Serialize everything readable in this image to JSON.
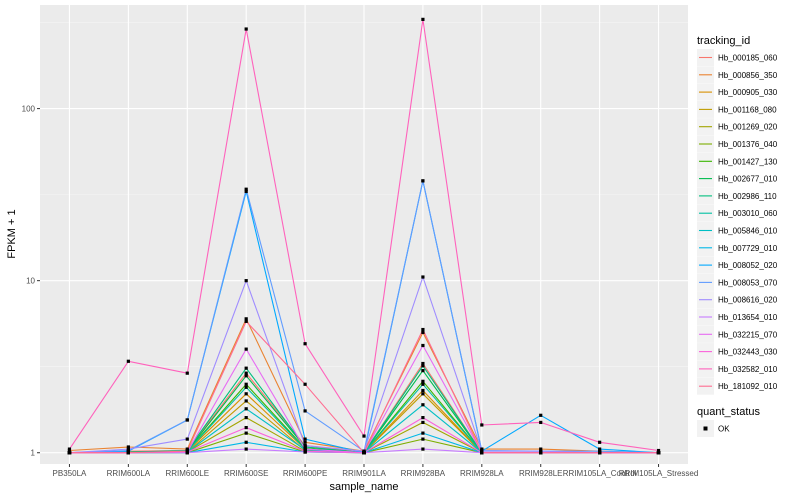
{
  "chart_data": {
    "type": "line",
    "xlabel": "sample_name",
    "ylabel": "FPKM + 1",
    "y_scale": "log10",
    "ylim": [
      0.86,
      400
    ],
    "y_ticks": [
      {
        "value": 1,
        "label": "1"
      },
      {
        "value": 10,
        "label": "10"
      },
      {
        "value": 100,
        "label": "100"
      }
    ],
    "grid": true,
    "legend_placement": "right",
    "categories": [
      "PB350LA",
      "RRIM600LA",
      "RRIM600LE",
      "RRIM600SE",
      "RRIM600PE",
      "RRIM901LA",
      "RRIM928BA",
      "RRIM928LA",
      "RRIM928LE",
      "RRIM105LA_Control",
      "RRIM105LA_Stressed"
    ],
    "series": [
      {
        "name": "Hb_000185_060",
        "color": "#F8766D",
        "values": [
          1.0,
          1.02,
          1.03,
          2.9,
          1.1,
          1.0,
          3.3,
          1.0,
          1.0,
          1.0,
          1.0
        ]
      },
      {
        "name": "Hb_000856_350",
        "color": "#EA8331",
        "values": [
          1.03,
          1.08,
          1.05,
          6.0,
          1.15,
          1.02,
          5.0,
          1.05,
          1.05,
          1.02,
          1.0
        ]
      },
      {
        "name": "Hb_000905_030",
        "color": "#D89000",
        "values": [
          1.0,
          1.01,
          1.02,
          2.2,
          1.05,
          1.0,
          2.3,
          1.0,
          1.0,
          1.0,
          1.0
        ]
      },
      {
        "name": "Hb_001168_080",
        "color": "#C09B00",
        "values": [
          1.0,
          1.0,
          1.01,
          2.0,
          1.03,
          1.0,
          2.2,
          1.0,
          1.0,
          1.0,
          1.0
        ]
      },
      {
        "name": "Hb_001269_020",
        "color": "#A3A500",
        "values": [
          1.0,
          1.0,
          1.01,
          1.6,
          1.02,
          1.0,
          1.5,
          1.0,
          1.0,
          1.0,
          1.0
        ]
      },
      {
        "name": "Hb_001376_040",
        "color": "#7CAE00",
        "values": [
          1.0,
          1.0,
          1.0,
          1.3,
          1.01,
          1.0,
          1.2,
          1.0,
          1.0,
          1.0,
          1.0
        ]
      },
      {
        "name": "Hb_001427_130",
        "color": "#39B600",
        "values": [
          1.0,
          1.0,
          1.02,
          2.5,
          1.06,
          1.0,
          2.6,
          1.0,
          1.0,
          1.0,
          1.0
        ]
      },
      {
        "name": "Hb_002677_010",
        "color": "#00BB4E",
        "values": [
          1.0,
          1.01,
          1.02,
          2.8,
          1.08,
          1.0,
          3.0,
          1.0,
          1.0,
          1.0,
          1.0
        ]
      },
      {
        "name": "Hb_002986_110",
        "color": "#00BF7D",
        "values": [
          1.0,
          1.01,
          1.03,
          3.1,
          1.08,
          1.0,
          3.2,
          1.0,
          1.0,
          1.0,
          1.0
        ]
      },
      {
        "name": "Hb_003010_060",
        "color": "#00C1A3",
        "values": [
          1.0,
          1.0,
          1.02,
          2.4,
          1.05,
          1.0,
          2.5,
          1.0,
          1.0,
          1.0,
          1.0
        ]
      },
      {
        "name": "Hb_005846_010",
        "color": "#00BFC4",
        "values": [
          1.0,
          1.0,
          1.01,
          1.8,
          1.04,
          1.0,
          1.9,
          1.0,
          1.0,
          1.0,
          1.0
        ]
      },
      {
        "name": "Hb_007729_010",
        "color": "#00B8E7",
        "values": [
          1.0,
          1.0,
          1.0,
          1.15,
          1.01,
          1.0,
          1.3,
          1.0,
          1.0,
          1.0,
          1.0
        ]
      },
      {
        "name": "Hb_008052_020",
        "color": "#00A9FF",
        "values": [
          1.0,
          1.02,
          1.55,
          33.0,
          1.2,
          1.0,
          38.0,
          1.02,
          1.65,
          1.05,
          1.0
        ]
      },
      {
        "name": "Hb_008053_070",
        "color": "#619CFF",
        "values": [
          1.0,
          1.03,
          1.55,
          34.0,
          1.75,
          1.02,
          38.0,
          1.03,
          1.02,
          1.02,
          1.0
        ]
      },
      {
        "name": "Hb_008616_020",
        "color": "#9F8CFF",
        "values": [
          1.0,
          1.05,
          1.2,
          10.0,
          1.1,
          1.02,
          10.5,
          1.02,
          1.02,
          1.0,
          1.0
        ]
      },
      {
        "name": "Hb_013654_010",
        "color": "#C77CFF",
        "values": [
          1.0,
          1.0,
          1.0,
          1.05,
          1.01,
          1.0,
          1.05,
          1.0,
          1.0,
          1.0,
          1.0
        ]
      },
      {
        "name": "Hb_032215_070",
        "color": "#E76BF3",
        "values": [
          1.0,
          1.0,
          1.01,
          4.0,
          1.05,
          1.0,
          4.2,
          1.0,
          1.0,
          1.0,
          1.0
        ]
      },
      {
        "name": "Hb_032443_030",
        "color": "#FA62DB",
        "values": [
          1.0,
          1.0,
          1.01,
          1.4,
          1.02,
          1.0,
          1.6,
          1.0,
          1.0,
          1.0,
          1.0
        ]
      },
      {
        "name": "Hb_032582_010",
        "color": "#FF62BC",
        "values": [
          1.05,
          3.4,
          2.9,
          290.0,
          4.3,
          1.25,
          330.0,
          1.45,
          1.5,
          1.15,
          1.03
        ]
      },
      {
        "name": "Hb_181092_010",
        "color": "#FF6C91",
        "values": [
          1.0,
          1.0,
          1.02,
          5.8,
          2.5,
          1.0,
          5.2,
          1.0,
          1.0,
          1.0,
          1.0
        ]
      }
    ],
    "legend_title": "tracking_id",
    "points_legend": {
      "title": "quant_status",
      "label": "OK"
    }
  }
}
